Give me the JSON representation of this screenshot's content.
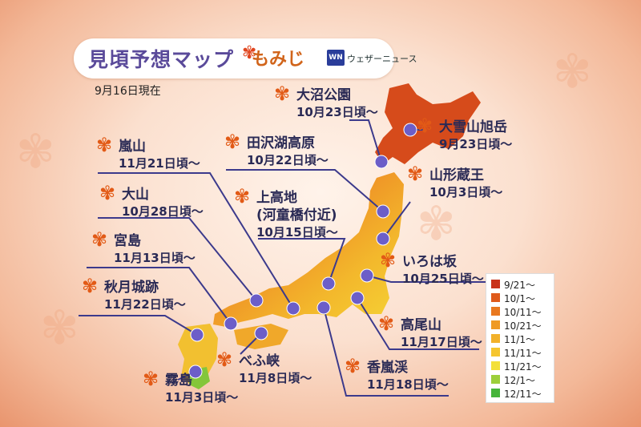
{
  "header": {
    "title": "見頃予想マップ",
    "subtitle": "もみじ",
    "logo_mark": "WN",
    "brand": "ウェザーニュース",
    "as_of": "9月16日現在"
  },
  "legend": {
    "items": [
      {
        "label": "9/21〜",
        "color": "#c8321a"
      },
      {
        "label": "10/1〜",
        "color": "#df5a1b"
      },
      {
        "label": "10/11〜",
        "color": "#e9781f"
      },
      {
        "label": "10/21〜",
        "color": "#ef9a24"
      },
      {
        "label": "11/1〜",
        "color": "#f2b12a"
      },
      {
        "label": "11/11〜",
        "color": "#f5c52f"
      },
      {
        "label": "11/21〜",
        "color": "#f3e03a"
      },
      {
        "label": "12/1〜",
        "color": "#9ccf3a"
      },
      {
        "label": "12/11〜",
        "color": "#46b43a"
      }
    ]
  },
  "spots": [
    {
      "name": "大沼公園",
      "date": "10月23日頃〜"
    },
    {
      "name": "大雪山旭岳",
      "date": "9月23日頃〜"
    },
    {
      "name": "田沢湖高原",
      "date": "10月22日頃〜"
    },
    {
      "name": "山形蔵王",
      "date": "10月3日頃〜"
    },
    {
      "name": "嵐山",
      "date": "11月21日頃〜"
    },
    {
      "name": "上高地",
      "name2": "(河童橋付近)",
      "date": "10月15日頃〜"
    },
    {
      "name": "大山",
      "date": "10月28日頃〜"
    },
    {
      "name": "宮島",
      "date": "11月13日頃〜"
    },
    {
      "name": "いろは坂",
      "date": "10月25日頃〜"
    },
    {
      "name": "秋月城跡",
      "date": "11月22日頃〜"
    },
    {
      "name": "高尾山",
      "date": "11月17日頃〜"
    },
    {
      "name": "べふ峡",
      "date": "11月8日頃〜"
    },
    {
      "name": "香嵐渓",
      "date": "11月18日頃〜"
    },
    {
      "name": "霧島",
      "date": "11月3日頃〜"
    }
  ]
}
